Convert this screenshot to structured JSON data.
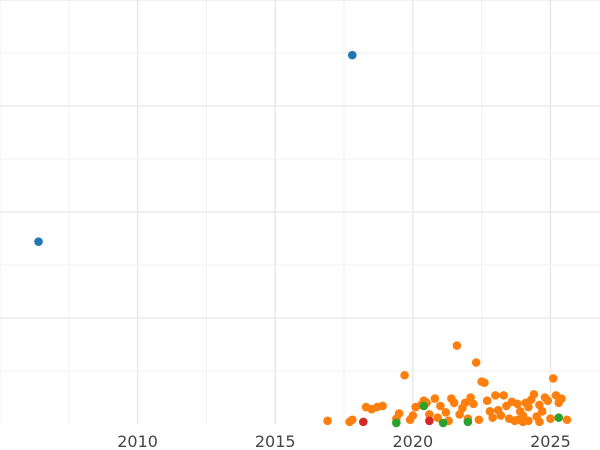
{
  "chart_data": {
    "type": "scatter",
    "x_ticks": [
      2010,
      2015,
      2020,
      2025
    ],
    "x_tick_labels": [
      "2010",
      "2015",
      "2020",
      "2025"
    ],
    "xlim": [
      2005.0,
      2026.8
    ],
    "ylim": [
      0,
      4.0
    ],
    "grid": true,
    "legend": "none",
    "series": [
      {
        "color": "#1f77b4",
        "points": [
          [
            2006.4,
            1.72
          ],
          [
            2017.8,
            3.48
          ]
        ]
      },
      {
        "color": "#ff7f0e",
        "points": [
          [
            2016.9,
            0.03
          ],
          [
            2017.7,
            0.02
          ],
          [
            2017.8,
            0.04
          ],
          [
            2018.3,
            0.16
          ],
          [
            2018.5,
            0.14
          ],
          [
            2018.7,
            0.16
          ],
          [
            2018.9,
            0.17
          ],
          [
            2019.4,
            0.05
          ],
          [
            2019.5,
            0.1
          ],
          [
            2019.7,
            0.46
          ],
          [
            2019.9,
            0.04
          ],
          [
            2020.0,
            0.08
          ],
          [
            2020.1,
            0.16
          ],
          [
            2020.3,
            0.18
          ],
          [
            2020.4,
            0.22
          ],
          [
            2020.5,
            0.2
          ],
          [
            2020.6,
            0.09
          ],
          [
            2020.8,
            0.24
          ],
          [
            2020.9,
            0.06
          ],
          [
            2021.0,
            0.17
          ],
          [
            2021.2,
            0.11
          ],
          [
            2021.3,
            0.03
          ],
          [
            2021.4,
            0.24
          ],
          [
            2021.5,
            0.2
          ],
          [
            2021.6,
            0.74
          ],
          [
            2021.7,
            0.09
          ],
          [
            2021.8,
            0.15
          ],
          [
            2021.9,
            0.2
          ],
          [
            2022.0,
            0.05
          ],
          [
            2022.1,
            0.25
          ],
          [
            2022.2,
            0.19
          ],
          [
            2022.3,
            0.58
          ],
          [
            2022.4,
            0.04
          ],
          [
            2022.5,
            0.4
          ],
          [
            2022.6,
            0.39
          ],
          [
            2022.7,
            0.22
          ],
          [
            2022.8,
            0.12
          ],
          [
            2022.9,
            0.06
          ],
          [
            2023.0,
            0.27
          ],
          [
            2023.1,
            0.13
          ],
          [
            2023.2,
            0.08
          ],
          [
            2023.3,
            0.27
          ],
          [
            2023.4,
            0.17
          ],
          [
            2023.5,
            0.05
          ],
          [
            2023.6,
            0.21
          ],
          [
            2023.7,
            0.03
          ],
          [
            2023.8,
            0.19
          ],
          [
            2023.9,
            0.12
          ],
          [
            2024.0,
            0.08
          ],
          [
            2024.1,
            0.2
          ],
          [
            2024.2,
            0.16
          ],
          [
            2024.3,
            0.23
          ],
          [
            2024.4,
            0.28
          ],
          [
            2024.5,
            0.07
          ],
          [
            2024.6,
            0.18
          ],
          [
            2024.7,
            0.12
          ],
          [
            2024.8,
            0.25
          ],
          [
            2024.9,
            0.22
          ],
          [
            2025.0,
            0.05
          ],
          [
            2025.1,
            0.43
          ],
          [
            2025.2,
            0.27
          ],
          [
            2025.3,
            0.2
          ],
          [
            2025.4,
            0.24
          ],
          [
            2024.0,
            0.02
          ],
          [
            2024.2,
            0.03
          ],
          [
            2024.6,
            0.02
          ],
          [
            2023.8,
            0.04
          ],
          [
            2025.6,
            0.04
          ]
        ]
      },
      {
        "color": "#2ca02c",
        "points": [
          [
            2019.4,
            0.01
          ],
          [
            2020.4,
            0.17
          ],
          [
            2021.1,
            0.01
          ],
          [
            2022.0,
            0.02
          ],
          [
            2025.3,
            0.06
          ]
        ]
      },
      {
        "color": "#d62728",
        "points": [
          [
            2018.2,
            0.02
          ],
          [
            2020.6,
            0.03
          ]
        ]
      }
    ]
  }
}
